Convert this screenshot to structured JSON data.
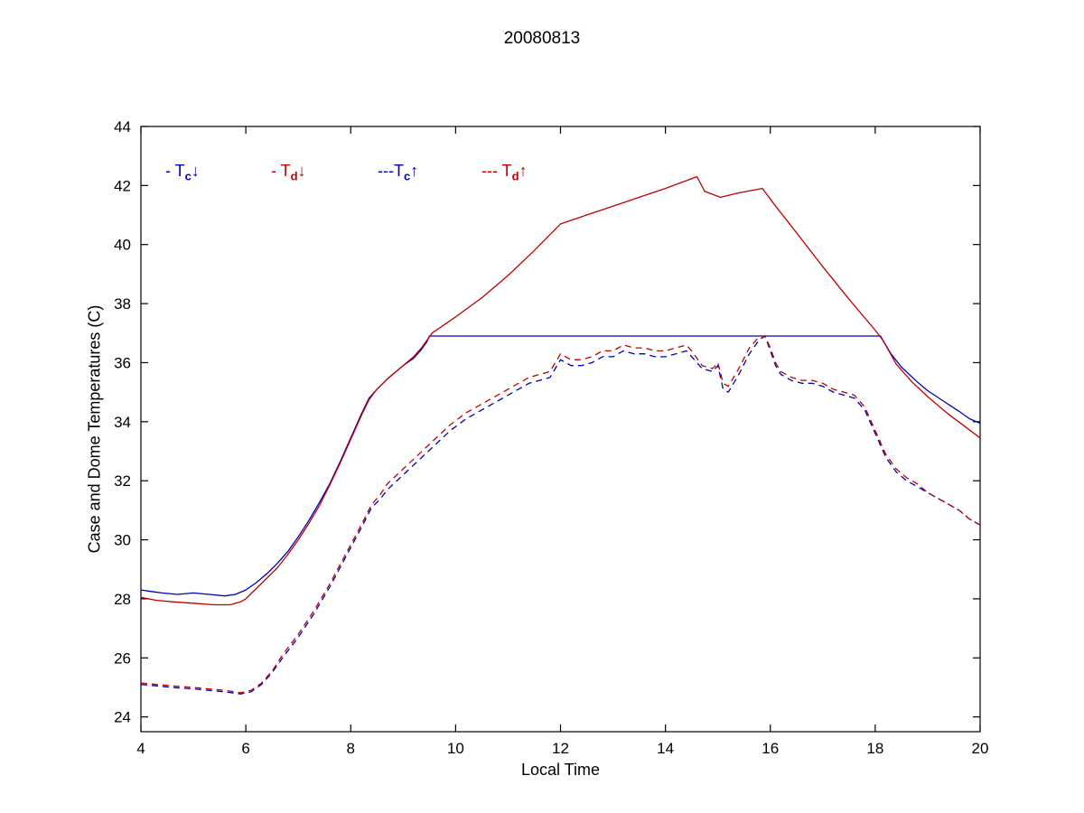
{
  "title": "20080813",
  "chart_data": {
    "type": "line",
    "title": "20080813",
    "xlabel": "Local Time",
    "ylabel": "Case and Dome Temperatures (C)",
    "xlim": [
      4,
      20
    ],
    "ylim": [
      23.5,
      44
    ],
    "xticks": [
      4,
      6,
      8,
      10,
      12,
      14,
      16,
      18,
      20
    ],
    "yticks": [
      24,
      26,
      28,
      30,
      32,
      34,
      36,
      38,
      40,
      42,
      44
    ],
    "grid": false,
    "legend_position": "inside-top-left",
    "colors": {
      "blue": "#0000b3",
      "red": "#c00000",
      "axis": "#000000"
    },
    "series": [
      {
        "id": "tc_down",
        "name": "Case temperature down (Tc, solid blue)",
        "legend": {
          "prefix": "- ",
          "symbol": "T",
          "subscript": "c",
          "arrow": "↓"
        },
        "color": "#0000b3",
        "style": "solid",
        "points": [
          [
            4,
            28.3
          ],
          [
            4.2,
            28.25
          ],
          [
            4.4,
            28.2
          ],
          [
            4.7,
            28.15
          ],
          [
            5,
            28.2
          ],
          [
            5.3,
            28.15
          ],
          [
            5.6,
            28.1
          ],
          [
            5.8,
            28.15
          ],
          [
            6,
            28.3
          ],
          [
            6.2,
            28.55
          ],
          [
            6.4,
            28.85
          ],
          [
            6.6,
            29.2
          ],
          [
            6.8,
            29.6
          ],
          [
            7,
            30.1
          ],
          [
            7.2,
            30.65
          ],
          [
            7.4,
            31.25
          ],
          [
            7.6,
            31.9
          ],
          [
            7.8,
            32.65
          ],
          [
            8,
            33.45
          ],
          [
            8.2,
            34.25
          ],
          [
            8.35,
            34.8
          ],
          [
            8.5,
            35.1
          ],
          [
            8.7,
            35.45
          ],
          [
            9,
            35.9
          ],
          [
            9.2,
            36.15
          ],
          [
            9.35,
            36.45
          ],
          [
            9.45,
            36.7
          ],
          [
            9.5,
            36.9
          ],
          [
            18.1,
            36.9
          ],
          [
            18.3,
            36.3
          ],
          [
            18.5,
            35.85
          ],
          [
            18.8,
            35.35
          ],
          [
            19,
            35.05
          ],
          [
            19.3,
            34.7
          ],
          [
            19.6,
            34.35
          ],
          [
            19.8,
            34.1
          ],
          [
            20,
            33.95
          ]
        ]
      },
      {
        "id": "td_down",
        "name": "Dome temperature down (Td, solid red)",
        "legend": {
          "prefix": "- ",
          "symbol": "T",
          "subscript": "d",
          "arrow": "↓"
        },
        "color": "#c00000",
        "style": "solid",
        "points": [
          [
            4,
            28.05
          ],
          [
            4.3,
            27.95
          ],
          [
            4.6,
            27.9
          ],
          [
            5,
            27.85
          ],
          [
            5.4,
            27.8
          ],
          [
            5.7,
            27.8
          ],
          [
            5.9,
            27.9
          ],
          [
            6,
            28.0
          ],
          [
            6.2,
            28.35
          ],
          [
            6.4,
            28.7
          ],
          [
            6.6,
            29.05
          ],
          [
            6.8,
            29.5
          ],
          [
            7,
            30.0
          ],
          [
            7.2,
            30.55
          ],
          [
            7.4,
            31.15
          ],
          [
            7.6,
            31.85
          ],
          [
            7.8,
            32.6
          ],
          [
            8,
            33.4
          ],
          [
            8.2,
            34.2
          ],
          [
            8.35,
            34.75
          ],
          [
            8.5,
            35.1
          ],
          [
            8.7,
            35.45
          ],
          [
            9,
            35.9
          ],
          [
            9.2,
            36.2
          ],
          [
            9.35,
            36.5
          ],
          [
            9.45,
            36.75
          ],
          [
            9.55,
            37.0
          ],
          [
            10,
            37.55
          ],
          [
            10.5,
            38.2
          ],
          [
            11,
            38.95
          ],
          [
            11.5,
            39.8
          ],
          [
            12,
            40.7
          ],
          [
            12.5,
            41.0
          ],
          [
            13,
            41.3
          ],
          [
            13.5,
            41.6
          ],
          [
            14,
            41.9
          ],
          [
            14.3,
            42.1
          ],
          [
            14.6,
            42.3
          ],
          [
            14.75,
            41.8
          ],
          [
            15.05,
            41.6
          ],
          [
            15.4,
            41.75
          ],
          [
            15.85,
            41.9
          ],
          [
            16.1,
            41.3
          ],
          [
            16.5,
            40.4
          ],
          [
            17,
            39.25
          ],
          [
            17.5,
            38.15
          ],
          [
            18,
            37.1
          ],
          [
            18.15,
            36.75
          ],
          [
            18.4,
            35.95
          ],
          [
            18.7,
            35.35
          ],
          [
            19,
            34.85
          ],
          [
            19.4,
            34.25
          ],
          [
            19.7,
            33.85
          ],
          [
            20,
            33.45
          ]
        ]
      },
      {
        "id": "tc_up",
        "name": "Case temperature up (Tc, dashed blue)",
        "legend": {
          "prefix": "---",
          "symbol": "T",
          "subscript": "c",
          "arrow": "↑"
        },
        "color": "#0000b3",
        "style": "dashed",
        "points": [
          [
            4,
            25.1
          ],
          [
            4.3,
            25.05
          ],
          [
            4.6,
            25.0
          ],
          [
            5,
            24.95
          ],
          [
            5.3,
            24.9
          ],
          [
            5.6,
            24.85
          ],
          [
            5.9,
            24.78
          ],
          [
            6.1,
            24.85
          ],
          [
            6.3,
            25.1
          ],
          [
            6.5,
            25.5
          ],
          [
            6.7,
            26.0
          ],
          [
            7,
            26.7
          ],
          [
            7.3,
            27.5
          ],
          [
            7.6,
            28.4
          ],
          [
            7.9,
            29.4
          ],
          [
            8.2,
            30.4
          ],
          [
            8.4,
            31.1
          ],
          [
            8.55,
            31.35
          ],
          [
            8.7,
            31.7
          ],
          [
            9,
            32.2
          ],
          [
            9.3,
            32.7
          ],
          [
            9.6,
            33.2
          ],
          [
            9.9,
            33.7
          ],
          [
            10.2,
            34.1
          ],
          [
            10.5,
            34.4
          ],
          [
            10.8,
            34.7
          ],
          [
            11,
            34.9
          ],
          [
            11.2,
            35.1
          ],
          [
            11.4,
            35.3
          ],
          [
            11.6,
            35.4
          ],
          [
            11.8,
            35.5
          ],
          [
            11.9,
            35.8
          ],
          [
            12,
            36.1
          ],
          [
            12.1,
            36.0
          ],
          [
            12.2,
            35.9
          ],
          [
            12.4,
            35.9
          ],
          [
            12.6,
            36.0
          ],
          [
            12.8,
            36.2
          ],
          [
            13,
            36.2
          ],
          [
            13.2,
            36.4
          ],
          [
            13.4,
            36.3
          ],
          [
            13.6,
            36.3
          ],
          [
            13.8,
            36.2
          ],
          [
            14,
            36.2
          ],
          [
            14.2,
            36.3
          ],
          [
            14.4,
            36.4
          ],
          [
            14.5,
            36.2
          ],
          [
            14.7,
            35.8
          ],
          [
            14.9,
            35.7
          ],
          [
            15,
            35.9
          ],
          [
            15.1,
            35.1
          ],
          [
            15.2,
            35.0
          ],
          [
            15.4,
            35.6
          ],
          [
            15.6,
            36.3
          ],
          [
            15.8,
            36.8
          ],
          [
            15.9,
            36.9
          ],
          [
            16,
            36.4
          ],
          [
            16.1,
            35.9
          ],
          [
            16.2,
            35.6
          ],
          [
            16.4,
            35.4
          ],
          [
            16.6,
            35.3
          ],
          [
            16.8,
            35.3
          ],
          [
            17,
            35.2
          ],
          [
            17.2,
            35.0
          ],
          [
            17.4,
            34.9
          ],
          [
            17.6,
            34.8
          ],
          [
            17.8,
            34.4
          ],
          [
            18,
            33.6
          ],
          [
            18.2,
            32.8
          ],
          [
            18.4,
            32.3
          ],
          [
            18.6,
            32.0
          ],
          [
            18.8,
            31.8
          ],
          [
            19,
            31.6
          ],
          [
            19.3,
            31.3
          ],
          [
            19.6,
            31.0
          ],
          [
            19.8,
            30.7
          ],
          [
            20,
            30.5
          ]
        ]
      },
      {
        "id": "td_up",
        "name": "Dome temperature up (Td, dashed red)",
        "legend": {
          "prefix": "--- ",
          "symbol": "T",
          "subscript": "d",
          "arrow": "↑"
        },
        "color": "#c00000",
        "style": "dashed",
        "points": [
          [
            4,
            25.15
          ],
          [
            4.3,
            25.1
          ],
          [
            4.6,
            25.05
          ],
          [
            5,
            25.0
          ],
          [
            5.3,
            24.95
          ],
          [
            5.6,
            24.9
          ],
          [
            5.9,
            24.82
          ],
          [
            6.1,
            24.9
          ],
          [
            6.3,
            25.15
          ],
          [
            6.5,
            25.55
          ],
          [
            6.7,
            26.1
          ],
          [
            7,
            26.8
          ],
          [
            7.3,
            27.6
          ],
          [
            7.6,
            28.5
          ],
          [
            7.9,
            29.5
          ],
          [
            8.2,
            30.5
          ],
          [
            8.4,
            31.2
          ],
          [
            8.55,
            31.5
          ],
          [
            8.7,
            31.9
          ],
          [
            9,
            32.4
          ],
          [
            9.3,
            32.9
          ],
          [
            9.6,
            33.4
          ],
          [
            9.9,
            33.9
          ],
          [
            10.2,
            34.3
          ],
          [
            10.5,
            34.6
          ],
          [
            10.8,
            34.9
          ],
          [
            11,
            35.1
          ],
          [
            11.2,
            35.3
          ],
          [
            11.4,
            35.5
          ],
          [
            11.6,
            35.6
          ],
          [
            11.8,
            35.7
          ],
          [
            11.9,
            36.0
          ],
          [
            12,
            36.3
          ],
          [
            12.1,
            36.2
          ],
          [
            12.2,
            36.1
          ],
          [
            12.4,
            36.1
          ],
          [
            12.6,
            36.2
          ],
          [
            12.8,
            36.4
          ],
          [
            13,
            36.4
          ],
          [
            13.2,
            36.6
          ],
          [
            13.4,
            36.5
          ],
          [
            13.6,
            36.5
          ],
          [
            13.8,
            36.4
          ],
          [
            14,
            36.4
          ],
          [
            14.2,
            36.5
          ],
          [
            14.4,
            36.6
          ],
          [
            14.5,
            36.4
          ],
          [
            14.7,
            35.9
          ],
          [
            14.9,
            35.8
          ],
          [
            15,
            36.0
          ],
          [
            15.1,
            35.3
          ],
          [
            15.2,
            35.2
          ],
          [
            15.4,
            35.8
          ],
          [
            15.6,
            36.5
          ],
          [
            15.8,
            36.9
          ],
          [
            15.9,
            36.9
          ],
          [
            16,
            36.5
          ],
          [
            16.1,
            36.0
          ],
          [
            16.2,
            35.7
          ],
          [
            16.4,
            35.5
          ],
          [
            16.6,
            35.4
          ],
          [
            16.8,
            35.4
          ],
          [
            17,
            35.3
          ],
          [
            17.2,
            35.1
          ],
          [
            17.4,
            35.0
          ],
          [
            17.6,
            34.9
          ],
          [
            17.8,
            34.5
          ],
          [
            18,
            33.7
          ],
          [
            18.2,
            32.9
          ],
          [
            18.4,
            32.4
          ],
          [
            18.6,
            32.1
          ],
          [
            18.8,
            31.9
          ],
          [
            19,
            31.6
          ],
          [
            19.3,
            31.3
          ],
          [
            19.6,
            31.0
          ],
          [
            19.8,
            30.7
          ],
          [
            20,
            30.5
          ]
        ]
      }
    ]
  }
}
